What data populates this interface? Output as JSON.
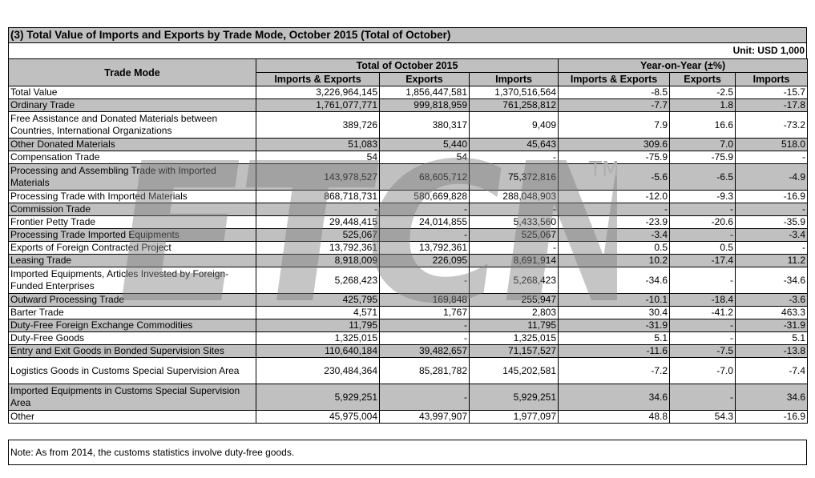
{
  "title": "(3) Total Value of Imports and Exports by Trade Mode, October 2015 (Total of October)",
  "unit": "Unit: USD 1,000",
  "headers": {
    "trade_mode": "Trade Mode",
    "group_total": "Total of October 2015",
    "group_yoy": "Year-on-Year (±%)",
    "imports_exports": "Imports & Exports",
    "exports": "Exports",
    "imports": "Imports"
  },
  "watermark": {
    "text": "ETCN",
    "tm": "TM",
    "color": "#7f7f7f"
  },
  "rows": [
    {
      "label": "Total Value",
      "ie": "3,226,964,145",
      "ex": "1,856,447,581",
      "im": "1,370,516,564",
      "yie": "-8.5",
      "yex": "-2.5",
      "yim": "-15.7",
      "shade": false,
      "tall": false
    },
    {
      "label": "Ordinary Trade",
      "ie": "1,761,077,771",
      "ex": "999,818,959",
      "im": "761,258,812",
      "yie": "-7.7",
      "yex": "1.8",
      "yim": "-17.8",
      "shade": true,
      "tall": false
    },
    {
      "label": "Free Assistance and Donated Materials between Countries, International Organizations",
      "ie": "389,726",
      "ex": "380,317",
      "im": "9,409",
      "yie": "7.9",
      "yex": "16.6",
      "yim": "-73.2",
      "shade": false,
      "tall": true
    },
    {
      "label": "Other Donated Materials",
      "ie": "51,083",
      "ex": "5,440",
      "im": "45,643",
      "yie": "309.6",
      "yex": "7.0",
      "yim": "518.0",
      "shade": true,
      "tall": false
    },
    {
      "label": "Compensation Trade",
      "ie": "54",
      "ex": "54",
      "im": "-",
      "yie": "-75.9",
      "yex": "-75.9",
      "yim": "-",
      "shade": false,
      "tall": false
    },
    {
      "label": "Processing and Assembling Trade with Imported Materials",
      "ie": "143,978,527",
      "ex": "68,605,712",
      "im": "75,372,816",
      "yie": "-5.6",
      "yex": "-6.5",
      "yim": "-4.9",
      "shade": true,
      "tall": true
    },
    {
      "label": "Processing Trade with Imported Materials",
      "ie": "868,718,731",
      "ex": "580,669,828",
      "im": "288,048,903",
      "yie": "-12.0",
      "yex": "-9.3",
      "yim": "-16.9",
      "shade": false,
      "tall": false
    },
    {
      "label": "Commission Trade",
      "ie": "-",
      "ex": "-",
      "im": "-",
      "yie": "-",
      "yex": "-",
      "yim": "-",
      "shade": true,
      "tall": false
    },
    {
      "label": "Frontier Petty Trade",
      "ie": "29,448,415",
      "ex": "24,014,855",
      "im": "5,433,560",
      "yie": "-23.9",
      "yex": "-20.6",
      "yim": "-35.9",
      "shade": false,
      "tall": false
    },
    {
      "label": "Processing Trade Imported Equipments",
      "ie": "525,067",
      "ex": "-",
      "im": "525,067",
      "yie": "-3.4",
      "yex": "-",
      "yim": "-3.4",
      "shade": true,
      "tall": false
    },
    {
      "label": "Exports of Foreign Contracted Project",
      "ie": "13,792,361",
      "ex": "13,792,361",
      "im": "-",
      "yie": "0.5",
      "yex": "0.5",
      "yim": "-",
      "shade": false,
      "tall": false
    },
    {
      "label": "Leasing Trade",
      "ie": "8,918,009",
      "ex": "226,095",
      "im": "8,691,914",
      "yie": "10.2",
      "yex": "-17.4",
      "yim": "11.2",
      "shade": true,
      "tall": false
    },
    {
      "label": "Imported Equipments, Articles Invested by Foreign-Funded Enterprises",
      "ie": "5,268,423",
      "ex": "-",
      "im": "5,268,423",
      "yie": "-34.6",
      "yex": "-",
      "yim": "-34.6",
      "shade": false,
      "tall": true
    },
    {
      "label": "Outward Processing Trade",
      "ie": "425,795",
      "ex": "169,848",
      "im": "255,947",
      "yie": "-10.1",
      "yex": "-18.4",
      "yim": "-3.6",
      "shade": true,
      "tall": false
    },
    {
      "label": "Barter Trade",
      "ie": "4,571",
      "ex": "1,767",
      "im": "2,803",
      "yie": "30.4",
      "yex": "-41.2",
      "yim": "463.3",
      "shade": false,
      "tall": false
    },
    {
      "label": "Duty-Free Foreign Exchange Commodities",
      "ie": "11,795",
      "ex": "-",
      "im": "11,795",
      "yie": "-31.9",
      "yex": "-",
      "yim": "-31.9",
      "shade": true,
      "tall": false
    },
    {
      "label": "Duty-Free Goods",
      "ie": "1,325,015",
      "ex": "-",
      "im": "1,325,015",
      "yie": "5.1",
      "yex": "-",
      "yim": "5.1",
      "shade": false,
      "tall": false
    },
    {
      "label": "Entry and Exit Goods in Bonded Supervision Sites",
      "ie": "110,640,184",
      "ex": "39,482,657",
      "im": "71,157,527",
      "yie": "-11.6",
      "yex": "-7.5",
      "yim": "-13.8",
      "shade": true,
      "tall": false
    },
    {
      "label": "Logistics Goods in Customs Special Supervision Area",
      "ie": "230,484,364",
      "ex": "85,281,782",
      "im": "145,202,581",
      "yie": "-7.2",
      "yex": "-7.0",
      "yim": "-7.4",
      "shade": false,
      "tall": true
    },
    {
      "label": "Imported Equipments in Customs Special Supervision Area",
      "ie": "5,929,251",
      "ex": "-",
      "im": "5,929,251",
      "yie": "34.6",
      "yex": "-",
      "yim": "34.6",
      "shade": true,
      "tall": true
    },
    {
      "label": "Other",
      "ie": "45,975,004",
      "ex": "43,997,907",
      "im": "1,977,097",
      "yie": "48.8",
      "yex": "54.3",
      "yim": "-16.9",
      "shade": false,
      "tall": false
    }
  ],
  "note": "Note: As from 2014, the customs statistics involve duty-free goods."
}
